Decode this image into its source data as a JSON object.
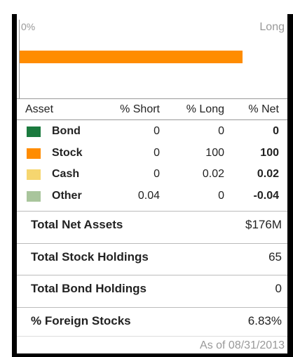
{
  "chart": {
    "left_label": "0%",
    "right_label": "Long",
    "xlim": [
      0,
      120
    ],
    "bar_color": "#ff8c00"
  },
  "table": {
    "columns": [
      "Asset",
      "% Short",
      "% Long",
      "% Net"
    ],
    "rows": [
      {
        "name": "Bond",
        "color": "#1b7a3e",
        "short": 0,
        "long": 0,
        "net": 0
      },
      {
        "name": "Stock",
        "color": "#ff8c00",
        "short": 0,
        "long": 100,
        "net": 100
      },
      {
        "name": "Cash",
        "color": "#f6d66f",
        "short": 0,
        "long": 0.02,
        "net": 0.02
      },
      {
        "name": "Other",
        "color": "#a9c59c",
        "short": 0.04,
        "long": 0,
        "net": -0.04
      }
    ]
  },
  "summary": [
    {
      "label": "Total Net Assets",
      "value": "$176M"
    },
    {
      "label": "Total Stock Holdings",
      "value": "65"
    },
    {
      "label": "Total Bond Holdings",
      "value": "0"
    },
    {
      "label": "% Foreign Stocks",
      "value": "6.83%"
    }
  ],
  "footer": "As of 08/31/2013"
}
